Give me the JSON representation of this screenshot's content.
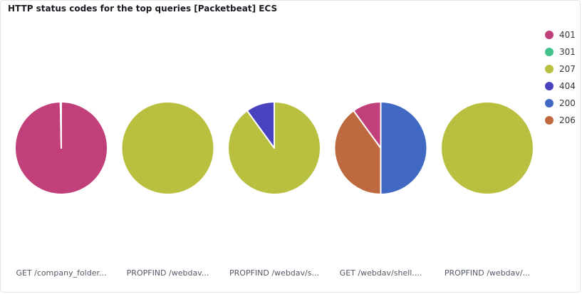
{
  "panel": {
    "title": "HTTP status codes for the top queries [Packetbeat] ECS"
  },
  "chart_data": {
    "type": "pie",
    "legend_position": "top-right",
    "legend": [
      {
        "label": "401",
        "color": "#c13f7a"
      },
      {
        "label": "301",
        "color": "#41c28a"
      },
      {
        "label": "207",
        "color": "#b9c040"
      },
      {
        "label": "404",
        "color": "#4a43c0"
      },
      {
        "label": "200",
        "color": "#4169c4"
      },
      {
        "label": "206",
        "color": "#bf6941"
      }
    ],
    "pies": [
      {
        "label": "GET /company_folder...",
        "slices": [
          {
            "name": "401",
            "value": 99.7
          },
          {
            "name": "200",
            "value": 0.3
          }
        ]
      },
      {
        "label": "PROPFIND /webdav...",
        "slices": [
          {
            "name": "207",
            "value": 100
          }
        ]
      },
      {
        "label": "PROPFIND /webdav/s...",
        "slices": [
          {
            "name": "207",
            "value": 90
          },
          {
            "name": "404",
            "value": 10
          }
        ]
      },
      {
        "label": "GET /webdav/shell....",
        "slices": [
          {
            "name": "200",
            "value": 50
          },
          {
            "name": "206",
            "value": 40
          },
          {
            "name": "401",
            "value": 10
          }
        ]
      },
      {
        "label": "PROPFIND /webdav/...",
        "slices": [
          {
            "name": "207",
            "value": 100
          }
        ]
      }
    ]
  }
}
